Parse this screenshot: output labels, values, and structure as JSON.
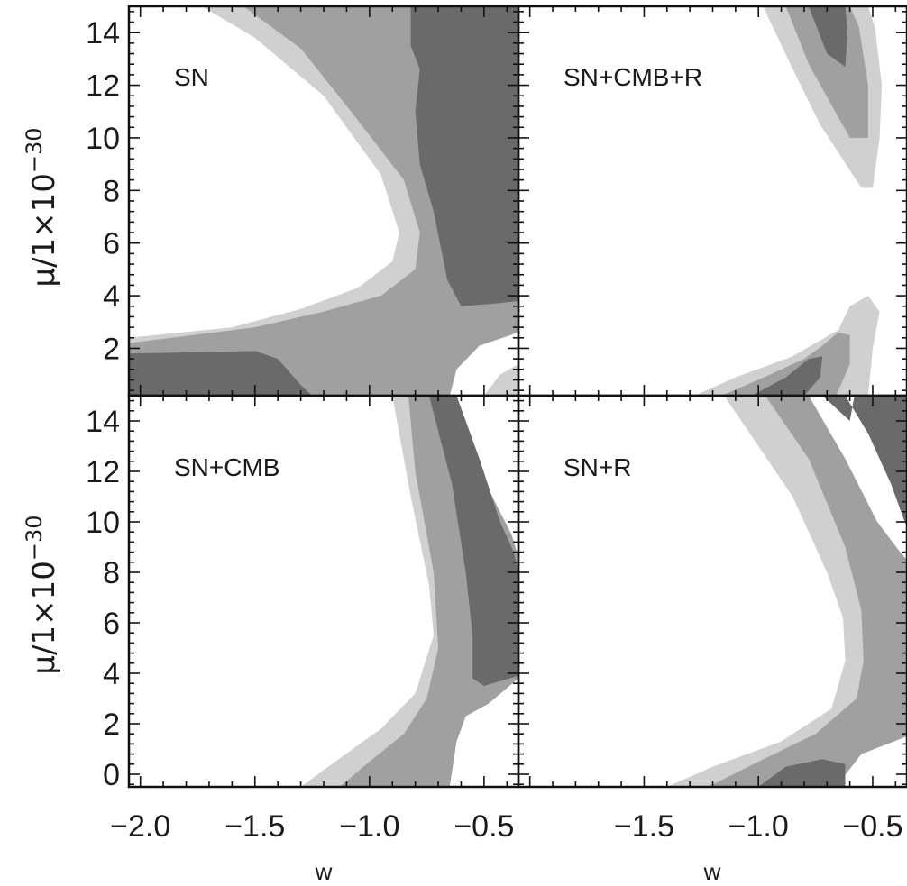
{
  "chart_data": [
    {
      "type": "contour",
      "label": "SN",
      "xlabel": "",
      "ylabel": "μ/1×10",
      "ylabel_exponent": "−30",
      "xlim": [
        -2.05,
        -0.35
      ],
      "ylim": [
        0.2,
        15.0
      ],
      "yticks": [
        "2",
        "4",
        "6",
        "8",
        "10",
        "12",
        "14"
      ],
      "xticks": [],
      "levels": [
        {
          "level": 3,
          "color": "#d0d0d0",
          "polygon": [
            [
              -2.05,
              15
            ],
            [
              -1.73,
              15
            ],
            [
              -1.5,
              13.8
            ],
            [
              -1.2,
              11.6
            ],
            [
              -0.95,
              8.6
            ],
            [
              -0.87,
              6.4
            ],
            [
              -0.9,
              5.3
            ],
            [
              -1.05,
              4.3
            ],
            [
              -1.3,
              3.5
            ],
            [
              -1.6,
              2.8
            ],
            [
              -2.05,
              2.4
            ],
            [
              -2.05,
              0.2
            ],
            [
              -0.35,
              0.2
            ],
            [
              -0.35,
              15
            ]
          ]
        },
        {
          "level": 2,
          "color": "#a0a0a0",
          "polygon": [
            [
              -1.55,
              15
            ],
            [
              -1.3,
              13.4
            ],
            [
              -1.08,
              11.0
            ],
            [
              -0.85,
              8.4
            ],
            [
              -0.78,
              6.4
            ],
            [
              -0.8,
              5.0
            ],
            [
              -0.95,
              4.0
            ],
            [
              -1.2,
              3.4
            ],
            [
              -1.5,
              2.8
            ],
            [
              -2.05,
              2.2
            ],
            [
              -2.05,
              0.2
            ],
            [
              -0.35,
              0.2
            ],
            [
              -0.35,
              15
            ]
          ]
        },
        {
          "level": 1,
          "color": "#6a6a6a",
          "polygon": [
            [
              -0.82,
              15
            ],
            [
              -0.82,
              13.5
            ],
            [
              -0.78,
              12.6
            ],
            [
              -0.8,
              11.0
            ],
            [
              -0.78,
              9.0
            ],
            [
              -0.72,
              7.2
            ],
            [
              -0.66,
              4.6
            ],
            [
              -0.6,
              3.6
            ],
            [
              -0.45,
              3.7
            ],
            [
              -0.35,
              3.8
            ],
            [
              -0.35,
              15
            ]
          ]
        },
        {
          "level": 1,
          "color": "#6a6a6a",
          "polygon": [
            [
              -2.05,
              1.8
            ],
            [
              -1.5,
              1.9
            ],
            [
              -1.4,
              1.6
            ],
            [
              -1.3,
              0.6
            ],
            [
              -1.25,
              0.2
            ],
            [
              -2.05,
              0.2
            ]
          ]
        },
        {
          "level": 0,
          "color": "#ffffff",
          "polygon": [
            [
              -0.65,
              0.2
            ],
            [
              -0.62,
              1.2
            ],
            [
              -0.52,
              2.1
            ],
            [
              -0.35,
              2.6
            ],
            [
              -0.35,
              0.2
            ]
          ]
        },
        {
          "level": 3,
          "color": "#d0d0d0",
          "polygon": [
            [
              -0.5,
              0.2
            ],
            [
              -0.43,
              1.0
            ],
            [
              -0.35,
              1.4
            ],
            [
              -0.35,
              0.2
            ]
          ]
        }
      ]
    },
    {
      "type": "contour",
      "label": "SN+CMB+R",
      "xlabel": "",
      "ylabel": "",
      "xlim": [
        -2.05,
        -0.35
      ],
      "ylim": [
        0.2,
        15.0
      ],
      "yticks": [],
      "xticks": [],
      "levels": [
        {
          "level": 3,
          "color": "#d0d0d0",
          "polygon": [
            [
              -0.98,
              15
            ],
            [
              -0.86,
              12.8
            ],
            [
              -0.73,
              10.5
            ],
            [
              -0.55,
              8.1
            ],
            [
              -0.5,
              8.1
            ],
            [
              -0.47,
              10.0
            ],
            [
              -0.46,
              12.0
            ],
            [
              -0.49,
              14.2
            ],
            [
              -0.52,
              15
            ]
          ]
        },
        {
          "level": 2,
          "color": "#a0a0a0",
          "polygon": [
            [
              -0.88,
              15
            ],
            [
              -0.78,
              12.8
            ],
            [
              -0.6,
              10.0
            ],
            [
              -0.52,
              10.0
            ],
            [
              -0.52,
              12.0
            ],
            [
              -0.56,
              14.2
            ],
            [
              -0.6,
              15
            ]
          ]
        },
        {
          "level": 1,
          "color": "#6a6a6a",
          "polygon": [
            [
              -0.78,
              15
            ],
            [
              -0.7,
              13.2
            ],
            [
              -0.62,
              12.7
            ],
            [
              -0.61,
              14.0
            ],
            [
              -0.62,
              15
            ]
          ]
        },
        {
          "level": 3,
          "color": "#d0d0d0",
          "polygon": [
            [
              -1.28,
              0.2
            ],
            [
              -1.1,
              0.9
            ],
            [
              -0.85,
              1.7
            ],
            [
              -0.65,
              2.7
            ],
            [
              -0.6,
              3.6
            ],
            [
              -0.52,
              4.0
            ],
            [
              -0.47,
              3.4
            ],
            [
              -0.5,
              2.0
            ],
            [
              -0.52,
              0.2
            ]
          ]
        },
        {
          "level": 2,
          "color": "#a0a0a0",
          "polygon": [
            [
              -1.16,
              0.2
            ],
            [
              -0.95,
              1.0
            ],
            [
              -0.8,
              1.6
            ],
            [
              -0.72,
              2.1
            ],
            [
              -0.65,
              2.6
            ],
            [
              -0.6,
              2.5
            ],
            [
              -0.6,
              1.4
            ],
            [
              -0.66,
              0.2
            ]
          ]
        },
        {
          "level": 1,
          "color": "#6a6a6a",
          "polygon": [
            [
              -1.03,
              0.2
            ],
            [
              -0.88,
              0.9
            ],
            [
              -0.78,
              1.6
            ],
            [
              -0.72,
              1.7
            ],
            [
              -0.73,
              0.9
            ],
            [
              -0.8,
              0.2
            ]
          ]
        }
      ]
    },
    {
      "type": "contour",
      "label": "SN+CMB",
      "xlabel": "w",
      "ylabel": "μ/1×10",
      "ylabel_exponent": "−30",
      "xlim": [
        -2.05,
        -0.35
      ],
      "ylim": [
        -0.5,
        15.0
      ],
      "yticks": [
        "0",
        "2",
        "4",
        "6",
        "8",
        "10",
        "12",
        "14"
      ],
      "xticks": [
        "−2.0",
        "−1.5",
        "−1.0",
        "−0.5"
      ],
      "xtick_values": [
        -2.0,
        -1.5,
        -1.0,
        -0.5
      ],
      "levels": [
        {
          "level": 3,
          "color": "#d0d0d0",
          "polygon": [
            [
              -0.9,
              15
            ],
            [
              -0.68,
              15
            ],
            [
              -0.55,
              12.0
            ],
            [
              -0.4,
              9.5
            ],
            [
              -0.35,
              8.6
            ],
            [
              -0.35,
              3.8
            ],
            [
              -0.5,
              3.0
            ],
            [
              -0.63,
              2.6
            ],
            [
              -0.68,
              1.5
            ],
            [
              -0.72,
              -0.5
            ],
            [
              -1.3,
              -0.5
            ],
            [
              -1.15,
              0.5
            ],
            [
              -0.95,
              1.8
            ],
            [
              -0.8,
              3.2
            ],
            [
              -0.72,
              5.5
            ],
            [
              -0.74,
              7.5
            ],
            [
              -0.82,
              11.0
            ]
          ]
        },
        {
          "level": 2,
          "color": "#a0a0a0",
          "polygon": [
            [
              -0.83,
              15
            ],
            [
              -0.66,
              15
            ],
            [
              -0.52,
              12.0
            ],
            [
              -0.38,
              9.5
            ],
            [
              -0.35,
              8.6
            ],
            [
              -0.35,
              3.8
            ],
            [
              -0.48,
              2.8
            ],
            [
              -0.58,
              2.3
            ],
            [
              -0.62,
              1.3
            ],
            [
              -0.65,
              -0.5
            ],
            [
              -1.13,
              -0.5
            ],
            [
              -1.0,
              0.5
            ],
            [
              -0.85,
              1.6
            ],
            [
              -0.75,
              3.0
            ],
            [
              -0.7,
              5.0
            ],
            [
              -0.72,
              8.0
            ],
            [
              -0.8,
              12.0
            ]
          ]
        },
        {
          "level": 1,
          "color": "#6a6a6a",
          "polygon": [
            [
              -0.74,
              15
            ],
            [
              -0.62,
              15
            ],
            [
              -0.52,
              12.5
            ],
            [
              -0.43,
              10.0
            ],
            [
              -0.37,
              8.8
            ],
            [
              -0.35,
              8.0
            ],
            [
              -0.35,
              3.9
            ],
            [
              -0.5,
              3.5
            ],
            [
              -0.55,
              3.8
            ],
            [
              -0.55,
              5.5
            ],
            [
              -0.58,
              8.0
            ],
            [
              -0.64,
              11.5
            ]
          ]
        }
      ]
    },
    {
      "type": "contour",
      "label": "SN+R",
      "xlabel": "w",
      "ylabel": "",
      "xlim": [
        -2.05,
        -0.35
      ],
      "ylim": [
        -0.5,
        15.0
      ],
      "yticks": [],
      "xticks": [
        "−1.5",
        "−1.0",
        "−0.5"
      ],
      "xtick_values": [
        -1.5,
        -1.0,
        -0.5
      ],
      "levels": [
        {
          "level": 3,
          "color": "#d0d0d0",
          "polygon": [
            [
              -1.15,
              15
            ],
            [
              -0.85,
              15
            ],
            [
              -0.7,
              13.0
            ],
            [
              -0.55,
              10.5
            ],
            [
              -0.4,
              8.0
            ],
            [
              -0.35,
              7.5
            ],
            [
              -0.35,
              2.6
            ],
            [
              -0.5,
              1.5
            ],
            [
              -0.7,
              0.5
            ],
            [
              -0.85,
              -0.5
            ],
            [
              -1.4,
              -0.5
            ],
            [
              -1.2,
              0.3
            ],
            [
              -0.9,
              1.3
            ],
            [
              -0.68,
              2.6
            ],
            [
              -0.62,
              4.5
            ],
            [
              -0.63,
              6.2
            ],
            [
              -0.7,
              8.0
            ],
            [
              -0.85,
              11.0
            ]
          ]
        },
        {
          "level": 2,
          "color": "#a0a0a0",
          "polygon": [
            [
              -0.97,
              15
            ],
            [
              -0.78,
              15
            ],
            [
              -0.62,
              12.5
            ],
            [
              -0.48,
              10.0
            ],
            [
              -0.38,
              8.8
            ],
            [
              -0.35,
              8.5
            ],
            [
              -0.35,
              1.5
            ],
            [
              -0.55,
              0.8
            ],
            [
              -0.66,
              -0.5
            ],
            [
              -1.22,
              -0.5
            ],
            [
              -1.0,
              0.5
            ],
            [
              -0.75,
              1.6
            ],
            [
              -0.57,
              3.0
            ],
            [
              -0.54,
              4.5
            ],
            [
              -0.55,
              6.5
            ],
            [
              -0.62,
              9.0
            ],
            [
              -0.78,
              12.5
            ]
          ]
        },
        {
          "level": 1,
          "color": "#6a6a6a",
          "polygon": [
            [
              -0.72,
              15
            ],
            [
              -0.62,
              15
            ],
            [
              -0.52,
              13.5
            ],
            [
              -0.42,
              11.5
            ],
            [
              -0.36,
              10.0
            ],
            [
              -0.35,
              9.8
            ],
            [
              -0.35,
              15.0
            ],
            [
              -0.58,
              15.0
            ],
            [
              -0.6,
              14.0
            ]
          ]
        },
        {
          "level": 1,
          "color": "#6a6a6a",
          "polygon": [
            [
              -1.0,
              -0.5
            ],
            [
              -0.88,
              0.3
            ],
            [
              -0.72,
              0.6
            ],
            [
              -0.62,
              0.4
            ],
            [
              -0.62,
              -0.5
            ]
          ]
        },
        {
          "level": 0,
          "color": "#ffffff",
          "polygon": [
            [
              -0.5,
              -0.5
            ],
            [
              -0.45,
              0.6
            ],
            [
              -0.35,
              1.0
            ],
            [
              -0.35,
              -0.5
            ]
          ]
        }
      ]
    }
  ]
}
